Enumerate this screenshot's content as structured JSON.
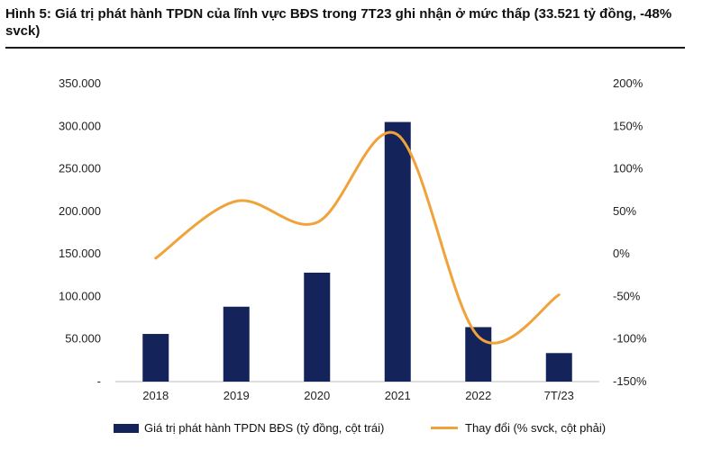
{
  "title": "Hình 5: Giá trị phát hành TPDN của lĩnh vực BĐS trong 7T23 ghi nhận ở mức thấp (33.521 tỷ đồng, -48% svck)",
  "chart_data": {
    "type": "bar",
    "categories": [
      "2018",
      "2019",
      "2020",
      "2021",
      "2022",
      "7T/23"
    ],
    "series": [
      {
        "name": "Giá trị phát hành TPDN BĐS (tỷ đồng, cột trái)",
        "type": "bar",
        "axis": "left",
        "color": "#14245a",
        "values": [
          56000,
          88000,
          128000,
          305000,
          64000,
          33521
        ]
      },
      {
        "name": "Thay đổi (% svck, cột phải)",
        "type": "line",
        "axis": "right",
        "color": "#f0a23b",
        "values": [
          -5,
          62,
          37,
          140,
          -97,
          -48
        ]
      }
    ],
    "y_left": {
      "range": [
        0,
        350000
      ],
      "ticks": [
        0,
        50000,
        100000,
        150000,
        200000,
        250000,
        300000,
        350000
      ],
      "tick_labels": [
        "-",
        "50.000",
        "100.000",
        "150.000",
        "200.000",
        "250.000",
        "300.000",
        "350.000"
      ]
    },
    "y_right": {
      "range": [
        -150,
        200
      ],
      "ticks": [
        -150,
        -100,
        -50,
        0,
        50,
        100,
        150,
        200
      ],
      "tick_labels": [
        "-150%",
        "-100%",
        "-50%",
        "0%",
        "50%",
        "100%",
        "150%",
        "200%"
      ]
    },
    "grid": false,
    "legend_position": "bottom"
  }
}
